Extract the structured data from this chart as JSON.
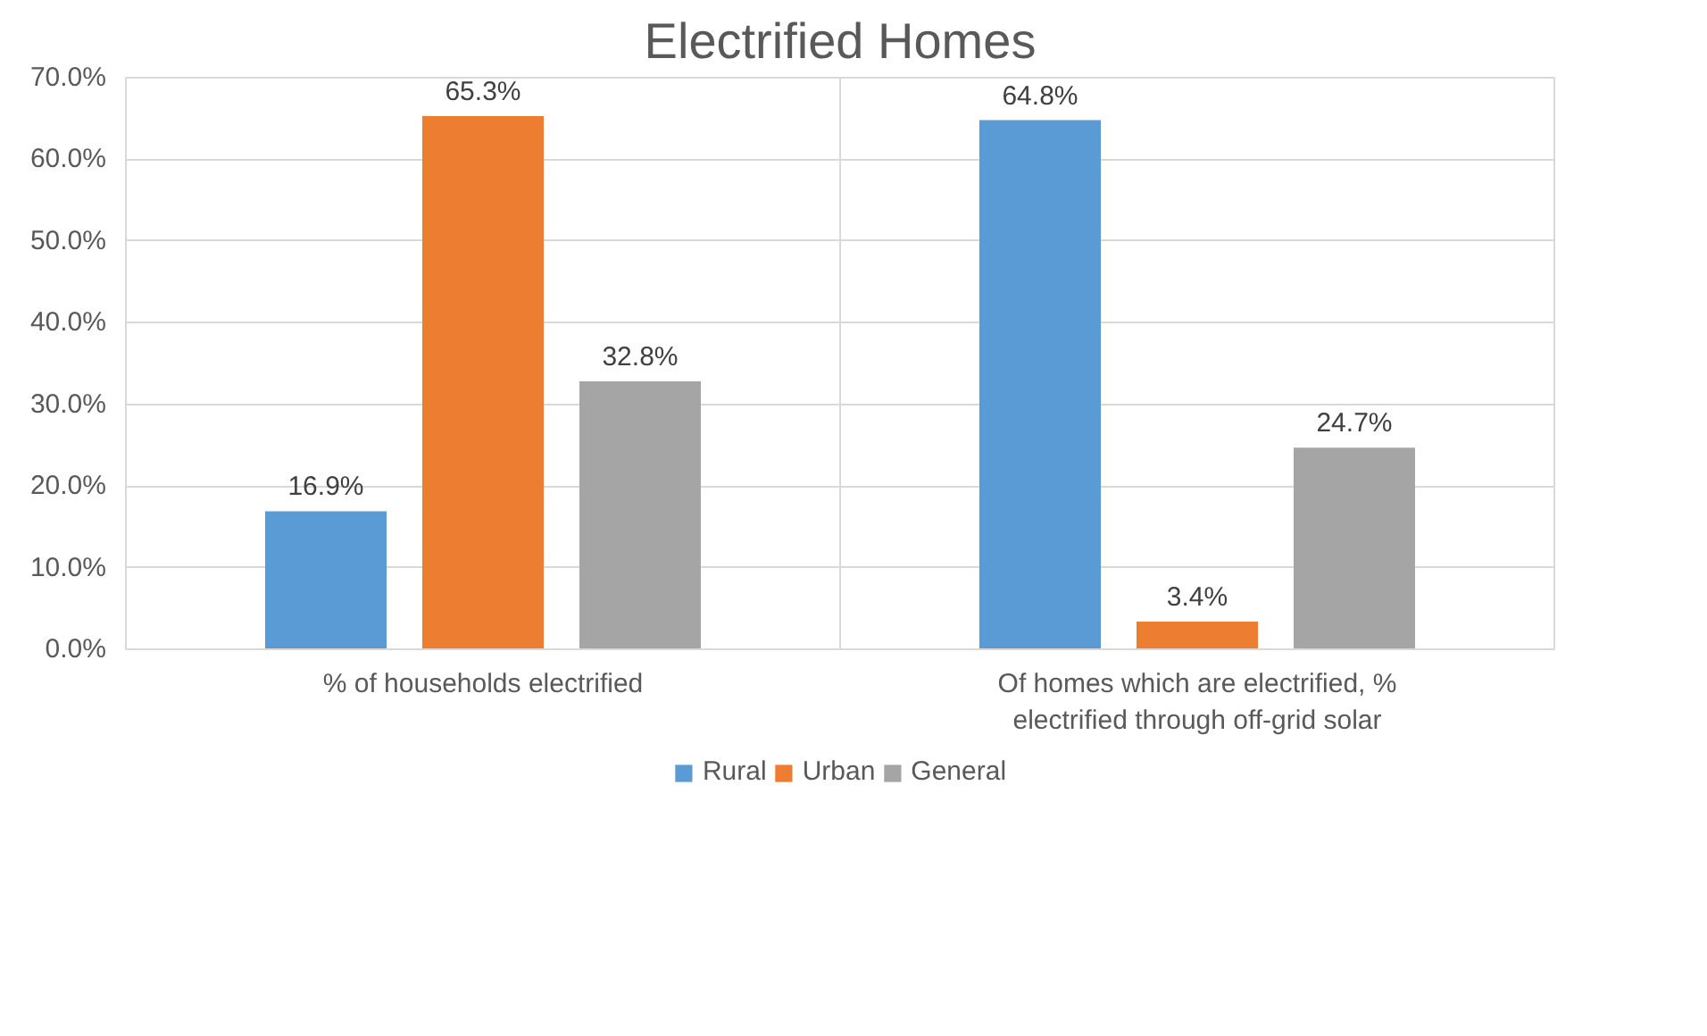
{
  "chart_data": {
    "type": "bar",
    "title": "Electrified Homes",
    "categories": [
      "% of households electrified",
      "Of homes which are electrified, % electrified through off-grid solar"
    ],
    "series": [
      {
        "name": "Rural",
        "color": "#5b9bd5",
        "values": [
          16.9,
          64.8
        ],
        "value_labels": [
          "16.9%",
          "64.8%"
        ]
      },
      {
        "name": "Urban",
        "color": "#ed7d31",
        "values": [
          65.3,
          3.4
        ],
        "value_labels": [
          "65.3%",
          "3.4%"
        ]
      },
      {
        "name": "General",
        "color": "#a5a5a5",
        "values": [
          32.8,
          24.7
        ],
        "value_labels": [
          "32.8%",
          "24.7%"
        ]
      }
    ],
    "ylim": [
      0,
      70
    ],
    "yticks": [
      {
        "value": 0,
        "label": "0.0%"
      },
      {
        "value": 10,
        "label": "10.0%"
      },
      {
        "value": 20,
        "label": "20.0%"
      },
      {
        "value": 30,
        "label": "30.0%"
      },
      {
        "value": 40,
        "label": "40.0%"
      },
      {
        "value": 50,
        "label": "50.0%"
      },
      {
        "value": 60,
        "label": "60.0%"
      },
      {
        "value": 70,
        "label": "70.0%"
      }
    ],
    "grid": true,
    "legend": "bottom"
  }
}
